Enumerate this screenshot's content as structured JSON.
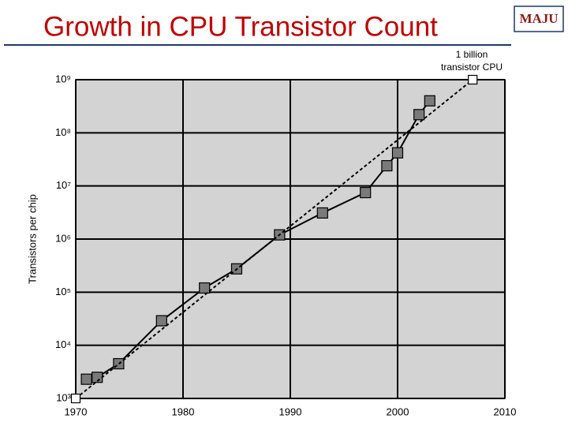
{
  "slide": {
    "title": "Growth in CPU Transistor Count",
    "logo": "MAJU"
  },
  "chart_data": {
    "type": "line",
    "ylabel": "Transistors per chip",
    "annotation": [
      "1 billion",
      "transistor CPU"
    ],
    "xlim": [
      1970,
      2010
    ],
    "xticks": [
      1970,
      1980,
      1990,
      2000,
      2010
    ],
    "ylim": [
      1000,
      1000000000
    ],
    "ylog": true,
    "yticks": [
      {
        "value": 1000,
        "label": "10³"
      },
      {
        "value": 10000,
        "label": "10⁴"
      },
      {
        "value": 100000,
        "label": "10⁵"
      },
      {
        "value": 1000000,
        "label": "10⁶"
      },
      {
        "value": 10000000,
        "label": "10⁷"
      },
      {
        "value": 100000000,
        "label": "10⁸"
      },
      {
        "value": 1000000000,
        "label": "10⁹"
      }
    ],
    "grid": true,
    "series": [
      {
        "color": "#000000",
        "style": "solid",
        "marker": "filled-square",
        "x": [
          1971,
          1972,
          1974,
          1978,
          1982,
          1985,
          1989,
          1993,
          1997,
          1999,
          2000,
          2002,
          2003
        ],
        "values": [
          2300,
          2500,
          4500,
          29000,
          120000,
          275000,
          1200000,
          3100000,
          7500000,
          24000000,
          42000000,
          220000000,
          400000000
        ]
      },
      {
        "color": "#000000",
        "style": "dashed",
        "marker": "hollow-square",
        "x": [
          1970,
          2007
        ],
        "values": [
          1000,
          1000000000
        ]
      }
    ]
  }
}
